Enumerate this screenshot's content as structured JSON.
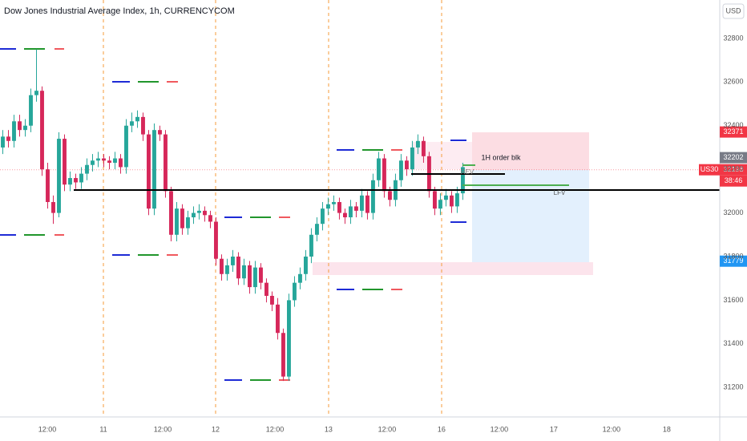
{
  "chart_data": {
    "type": "candlestick",
    "title": "Dow Jones Industrial Average Index, 1h, CURRENCYCOM",
    "currency": "USD",
    "symbol": "US30",
    "countdown": "38:46",
    "up_color": "#26a69a",
    "down_color": "#d6275a",
    "open": [
      32300,
      32350,
      32330,
      32420,
      32380,
      32400,
      32540,
      32560,
      32200,
      32050,
      32000,
      32340,
      32130,
      32160,
      32140,
      32180,
      32220,
      32240,
      32250,
      32240,
      32230,
      32250,
      32210,
      32400,
      32420,
      32440,
      32360,
      32020,
      32380,
      32360,
      32100,
      31900,
      32020,
      31930,
      31980,
      32000,
      32010,
      31990,
      31960,
      31790,
      31720,
      31760,
      31800,
      31700,
      31760,
      31660,
      31750,
      31680,
      31620,
      31580,
      31450,
      31250,
      31600,
      31680,
      31720,
      31800,
      31900,
      31950,
      32020,
      32040,
      32050,
      32000,
      31980,
      32030,
      32010,
      32080,
      32000,
      32150,
      32250,
      32100,
      32060,
      32150,
      32240,
      32200,
      32300,
      32330,
      32260,
      32100,
      32020,
      32060,
      32080,
      32030,
      32090
    ],
    "high": [
      32380,
      32380,
      32450,
      32450,
      32430,
      32570,
      32750,
      32580,
      32230,
      32080,
      32370,
      32360,
      32190,
      32180,
      32210,
      32250,
      32270,
      32280,
      32270,
      32260,
      32280,
      32270,
      32430,
      32460,
      32470,
      32460,
      32380,
      32410,
      32400,
      32380,
      32120,
      32050,
      32040,
      32010,
      32030,
      32040,
      32030,
      32010,
      31980,
      31810,
      31790,
      31830,
      31820,
      31790,
      31780,
      31780,
      31770,
      31700,
      31640,
      31610,
      31470,
      31630,
      31710,
      31750,
      31830,
      31930,
      31980,
      32050,
      32070,
      32080,
      32070,
      32020,
      32060,
      32050,
      32110,
      32100,
      32180,
      32280,
      32270,
      32120,
      32180,
      32270,
      32260,
      32330,
      32360,
      32350,
      32280,
      32120,
      32090,
      32110,
      32100,
      32120,
      32230
    ],
    "low": [
      32270,
      32300,
      32300,
      32350,
      32350,
      32370,
      32510,
      32170,
      32020,
      31950,
      31980,
      32100,
      32100,
      32110,
      32110,
      32150,
      32190,
      32210,
      32210,
      32200,
      32200,
      32180,
      32180,
      32370,
      32390,
      32330,
      31990,
      31990,
      32330,
      32070,
      31870,
      31870,
      31900,
      31900,
      31950,
      31970,
      31960,
      31930,
      31760,
      31690,
      31690,
      31730,
      31670,
      31670,
      31630,
      31630,
      31650,
      31590,
      31550,
      31420,
      31230,
      31230,
      31570,
      31650,
      31690,
      31770,
      31870,
      31920,
      31990,
      32010,
      31970,
      31950,
      31950,
      31980,
      31980,
      31970,
      31970,
      32120,
      32070,
      32030,
      32030,
      32120,
      32170,
      32170,
      32270,
      32230,
      32070,
      31990,
      31990,
      32030,
      32000,
      32000,
      32060
    ],
    "close": [
      32350,
      32330,
      32420,
      32380,
      32400,
      32540,
      32560,
      32200,
      32050,
      32000,
      32340,
      32130,
      32160,
      32140,
      32180,
      32220,
      32240,
      32250,
      32240,
      32230,
      32250,
      32210,
      32400,
      32420,
      32440,
      32360,
      32020,
      32380,
      32360,
      32100,
      31900,
      32020,
      31930,
      31980,
      32000,
      32010,
      31990,
      31960,
      31790,
      31720,
      31760,
      31800,
      31700,
      31760,
      31660,
      31750,
      31680,
      31620,
      31580,
      31450,
      31250,
      31600,
      31680,
      31720,
      31800,
      31900,
      31950,
      32020,
      32040,
      32050,
      32000,
      31980,
      32030,
      32010,
      32080,
      32000,
      32150,
      32250,
      32100,
      32060,
      32150,
      32240,
      32200,
      32300,
      32330,
      32260,
      32100,
      32020,
      32060,
      32080,
      32030,
      32090,
      32210
    ],
    "ylim": [
      31065,
      32976
    ],
    "yticks": [
      32800,
      32600,
      32400,
      32200,
      32000,
      31800,
      31600,
      31400,
      31200
    ],
    "xlim": [
      0,
      128.3
    ],
    "xticks": [
      {
        "value": 8.43,
        "label": "12:00"
      },
      {
        "value": 18.43,
        "label": "11"
      },
      {
        "value": 29,
        "label": "12:00"
      },
      {
        "value": 38.43,
        "label": "12"
      },
      {
        "value": 49,
        "label": "12:00"
      },
      {
        "value": 58.57,
        "label": "13"
      },
      {
        "value": 69,
        "label": "12:00"
      },
      {
        "value": 78.71,
        "label": "16"
      },
      {
        "value": 89,
        "label": "12:00"
      },
      {
        "value": 98.71,
        "label": "17"
      },
      {
        "value": 109,
        "label": "12:00"
      },
      {
        "value": 118.86,
        "label": "18"
      }
    ],
    "price_badges": [
      {
        "value": 32371,
        "color": "#f23645"
      },
      {
        "value": 32202,
        "color": "#787b86"
      },
      {
        "value": 32198,
        "color": "#f23645"
      },
      {
        "value": 31779,
        "color": "#2196f3"
      }
    ],
    "annotations": [
      "1H order blk",
      "LFV",
      "REV"
    ]
  }
}
